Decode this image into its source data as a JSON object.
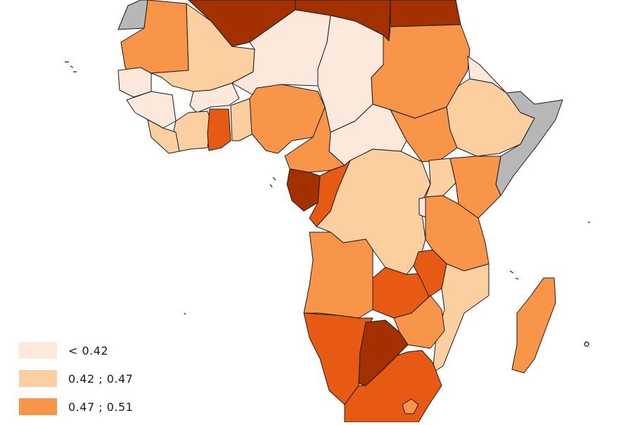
{
  "colors": {
    "c1": "#fde9dc",
    "c2": "#fbcf9f",
    "c3": "#f99549",
    "c4": "#e65a14",
    "c5": "#a33100",
    "nodata": "#b7b7b7"
  },
  "legend": [
    {
      "label": "< 0.42",
      "class": "c1"
    },
    {
      "label": "0.42 ; 0.47",
      "class": "c2"
    },
    {
      "label": "0.47 ; 0.51",
      "class": "c3"
    }
  ]
}
